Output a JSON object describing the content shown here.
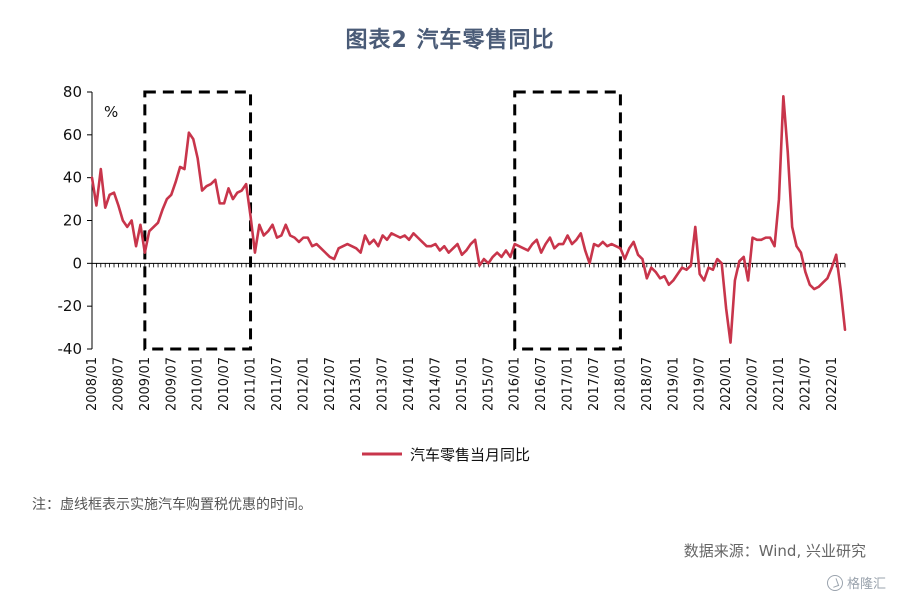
{
  "title": "图表2 汽车零售同比",
  "note": "注：虚线框表示实施汽车购置税优惠的时间。",
  "source": "数据来源：Wind, 兴业研究",
  "watermark": "格隆汇",
  "colors": {
    "series": "#c8354b",
    "axis": "#000000",
    "title": "#4a5b77"
  },
  "chart_data": {
    "type": "line",
    "title": "图表2 汽车零售同比",
    "unit_label": "%",
    "ylim": [
      -40,
      80
    ],
    "yticks": [
      -40,
      -20,
      0,
      20,
      40,
      60,
      80
    ],
    "xticks": [
      "2008/01",
      "2008/07",
      "2009/01",
      "2009/07",
      "2010/01",
      "2010/07",
      "2011/01",
      "2011/07",
      "2012/01",
      "2012/07",
      "2013/01",
      "2013/07",
      "2014/01",
      "2014/07",
      "2015/01",
      "2015/07",
      "2016/01",
      "2016/07",
      "2017/01",
      "2017/07",
      "2018/01",
      "2018/07",
      "2019/01",
      "2019/07",
      "2020/01",
      "2020/07",
      "2021/01",
      "2021/07",
      "2022/01"
    ],
    "x_start": "2008/01",
    "x_end": "2022/04",
    "grid": false,
    "legend": "bottom-center",
    "highlight_periods": [
      {
        "start": "2009/01",
        "end": "2010/12"
      },
      {
        "start": "2016/01",
        "end": "2017/12"
      }
    ],
    "series": [
      {
        "name": "汽车零售当月同比",
        "points": [
          [
            "2008/01",
            40
          ],
          [
            "2008/02",
            27
          ],
          [
            "2008/03",
            44
          ],
          [
            "2008/04",
            26
          ],
          [
            "2008/05",
            32
          ],
          [
            "2008/06",
            33
          ],
          [
            "2008/07",
            27
          ],
          [
            "2008/08",
            20
          ],
          [
            "2008/09",
            17
          ],
          [
            "2008/10",
            20
          ],
          [
            "2008/11",
            8
          ],
          [
            "2008/12",
            18
          ],
          [
            "2009/01",
            5
          ],
          [
            "2009/02",
            15
          ],
          [
            "2009/03",
            17
          ],
          [
            "2009/04",
            19
          ],
          [
            "2009/05",
            25
          ],
          [
            "2009/06",
            30
          ],
          [
            "2009/07",
            32
          ],
          [
            "2009/08",
            38
          ],
          [
            "2009/09",
            45
          ],
          [
            "2009/10",
            44
          ],
          [
            "2009/11",
            61
          ],
          [
            "2009/12",
            58
          ],
          [
            "2010/01",
            49
          ],
          [
            "2010/02",
            34
          ],
          [
            "2010/03",
            36
          ],
          [
            "2010/04",
            37
          ],
          [
            "2010/05",
            39
          ],
          [
            "2010/06",
            28
          ],
          [
            "2010/07",
            28
          ],
          [
            "2010/08",
            35
          ],
          [
            "2010/09",
            30
          ],
          [
            "2010/10",
            33
          ],
          [
            "2010/11",
            34
          ],
          [
            "2010/12",
            37
          ],
          [
            "2011/01",
            22
          ],
          [
            "2011/02",
            5
          ],
          [
            "2011/03",
            18
          ],
          [
            "2011/04",
            13
          ],
          [
            "2011/05",
            15
          ],
          [
            "2011/06",
            18
          ],
          [
            "2011/07",
            12
          ],
          [
            "2011/08",
            13
          ],
          [
            "2011/09",
            18
          ],
          [
            "2011/10",
            13
          ],
          [
            "2011/11",
            12
          ],
          [
            "2011/12",
            10
          ],
          [
            "2012/01",
            12
          ],
          [
            "2012/02",
            12
          ],
          [
            "2012/03",
            8
          ],
          [
            "2012/04",
            9
          ],
          [
            "2012/05",
            7
          ],
          [
            "2012/06",
            5
          ],
          [
            "2012/07",
            3
          ],
          [
            "2012/08",
            2
          ],
          [
            "2012/09",
            7
          ],
          [
            "2012/10",
            8
          ],
          [
            "2012/11",
            9
          ],
          [
            "2012/12",
            8
          ],
          [
            "2013/01",
            7
          ],
          [
            "2013/02",
            5
          ],
          [
            "2013/03",
            13
          ],
          [
            "2013/04",
            9
          ],
          [
            "2013/05",
            11
          ],
          [
            "2013/06",
            8
          ],
          [
            "2013/07",
            13
          ],
          [
            "2013/08",
            11
          ],
          [
            "2013/09",
            14
          ],
          [
            "2013/10",
            13
          ],
          [
            "2013/11",
            12
          ],
          [
            "2013/12",
            13
          ],
          [
            "2014/01",
            11
          ],
          [
            "2014/02",
            14
          ],
          [
            "2014/03",
            12
          ],
          [
            "2014/04",
            10
          ],
          [
            "2014/05",
            8
          ],
          [
            "2014/06",
            8
          ],
          [
            "2014/07",
            9
          ],
          [
            "2014/08",
            6
          ],
          [
            "2014/09",
            8
          ],
          [
            "2014/10",
            5
          ],
          [
            "2014/11",
            7
          ],
          [
            "2014/12",
            9
          ],
          [
            "2015/01",
            4
          ],
          [
            "2015/02",
            6
          ],
          [
            "2015/03",
            9
          ],
          [
            "2015/04",
            11
          ],
          [
            "2015/05",
            -1
          ],
          [
            "2015/06",
            2
          ],
          [
            "2015/07",
            0
          ],
          [
            "2015/08",
            3
          ],
          [
            "2015/09",
            5
          ],
          [
            "2015/10",
            3
          ],
          [
            "2015/11",
            6
          ],
          [
            "2015/12",
            3
          ],
          [
            "2016/01",
            9
          ],
          [
            "2016/02",
            8
          ],
          [
            "2016/03",
            7
          ],
          [
            "2016/04",
            6
          ],
          [
            "2016/05",
            9
          ],
          [
            "2016/06",
            11
          ],
          [
            "2016/07",
            5
          ],
          [
            "2016/08",
            9
          ],
          [
            "2016/09",
            12
          ],
          [
            "2016/10",
            7
          ],
          [
            "2016/11",
            9
          ],
          [
            "2016/12",
            9
          ],
          [
            "2017/01",
            13
          ],
          [
            "2017/02",
            9
          ],
          [
            "2017/03",
            11
          ],
          [
            "2017/04",
            14
          ],
          [
            "2017/05",
            6
          ],
          [
            "2017/06",
            0
          ],
          [
            "2017/07",
            9
          ],
          [
            "2017/08",
            8
          ],
          [
            "2017/09",
            10
          ],
          [
            "2017/10",
            8
          ],
          [
            "2017/11",
            9
          ],
          [
            "2017/12",
            8
          ],
          [
            "2018/01",
            7
          ],
          [
            "2018/02",
            2
          ],
          [
            "2018/03",
            7
          ],
          [
            "2018/04",
            10
          ],
          [
            "2018/05",
            4
          ],
          [
            "2018/06",
            2
          ],
          [
            "2018/07",
            -7
          ],
          [
            "2018/08",
            -2
          ],
          [
            "2018/09",
            -4
          ],
          [
            "2018/10",
            -7
          ],
          [
            "2018/11",
            -6
          ],
          [
            "2018/12",
            -10
          ],
          [
            "2019/01",
            -8
          ],
          [
            "2019/02",
            -5
          ],
          [
            "2019/03",
            -2
          ],
          [
            "2019/04",
            -3
          ],
          [
            "2019/05",
            -1
          ],
          [
            "2019/06",
            17
          ],
          [
            "2019/07",
            -5
          ],
          [
            "2019/08",
            -8
          ],
          [
            "2019/09",
            -2
          ],
          [
            "2019/10",
            -3
          ],
          [
            "2019/11",
            2
          ],
          [
            "2019/12",
            0
          ],
          [
            "2020/01",
            -21
          ],
          [
            "2020/02",
            -37
          ],
          [
            "2020/03",
            -8
          ],
          [
            "2020/04",
            1
          ],
          [
            "2020/05",
            3
          ],
          [
            "2020/06",
            -8
          ],
          [
            "2020/07",
            12
          ],
          [
            "2020/08",
            11
          ],
          [
            "2020/09",
            11
          ],
          [
            "2020/10",
            12
          ],
          [
            "2020/11",
            12
          ],
          [
            "2020/12",
            8
          ],
          [
            "2021/01",
            30
          ],
          [
            "2021/02",
            78
          ],
          [
            "2021/03",
            52
          ],
          [
            "2021/04",
            17
          ],
          [
            "2021/05",
            8
          ],
          [
            "2021/06",
            5
          ],
          [
            "2021/07",
            -4
          ],
          [
            "2021/08",
            -10
          ],
          [
            "2021/09",
            -12
          ],
          [
            "2021/10",
            -11
          ],
          [
            "2021/11",
            -9
          ],
          [
            "2021/12",
            -7
          ],
          [
            "2022/01",
            -2
          ],
          [
            "2022/02",
            4
          ],
          [
            "2022/03",
            -12
          ],
          [
            "2022/04",
            -31
          ]
        ]
      }
    ]
  }
}
